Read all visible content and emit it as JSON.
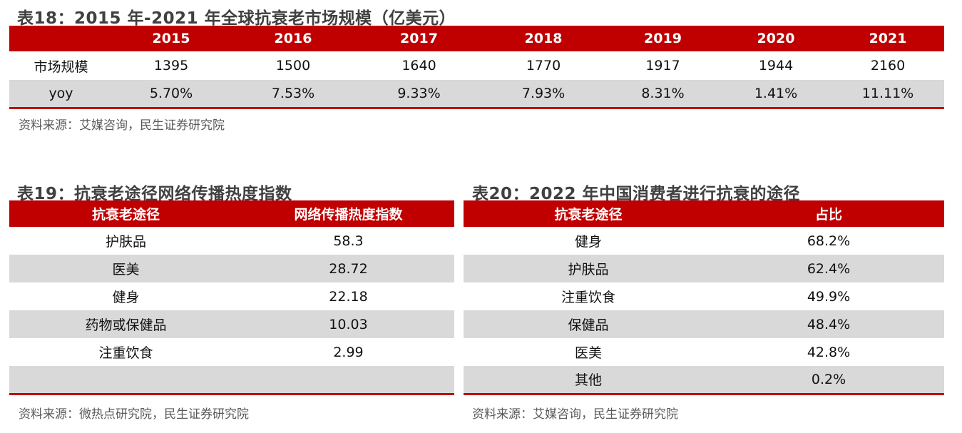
{
  "table18": {
    "title": "表18：2015 年-2021 年全球抗衰老市场规模（亿美元）",
    "header": [
      "",
      "2015",
      "2016",
      "2017",
      "2018",
      "2019",
      "2020",
      "2021"
    ],
    "rows": [
      [
        "市场规模",
        "1395",
        "1500",
        "1640",
        "1770",
        "1917",
        "1944",
        "2160"
      ],
      [
        "yoy",
        "5.70%",
        "7.53%",
        "9.33%",
        "7.93%",
        "8.31%",
        "1.41%",
        "11.11%"
      ]
    ],
    "source": "资料来源：艾媒咨询，民生证券研究院"
  },
  "table19": {
    "title": "表19：抗衰老途径网络传播热度指数",
    "header": [
      "抗衰老途径",
      "网络传播热度指数"
    ],
    "rows": [
      [
        "护肤品",
        "58.3"
      ],
      [
        "医美",
        "28.72"
      ],
      [
        "健身",
        "22.18"
      ],
      [
        "药物或保健品",
        "10.03"
      ],
      [
        "注重饮食",
        "2.99"
      ],
      [
        "",
        ""
      ]
    ],
    "source": "资料来源：微热点研究院，民生证券研究院"
  },
  "table20": {
    "title": "表20：2022 年中国消费者进行抗衰的途径",
    "header": [
      "抗衰老途径",
      "占比"
    ],
    "rows": [
      [
        "健身",
        "68.2%"
      ],
      [
        "护肤品",
        "62.4%"
      ],
      [
        "注重饮食",
        "49.9%"
      ],
      [
        "保健品",
        "48.4%"
      ],
      [
        "医美",
        "42.8%"
      ],
      [
        "其他",
        "0.2%"
      ]
    ],
    "source": "资料来源：艾媒咨询，民生证券研究院"
  },
  "colors": {
    "header": "#C00000",
    "stripe": "#D9D9D9",
    "title": "#404040"
  }
}
